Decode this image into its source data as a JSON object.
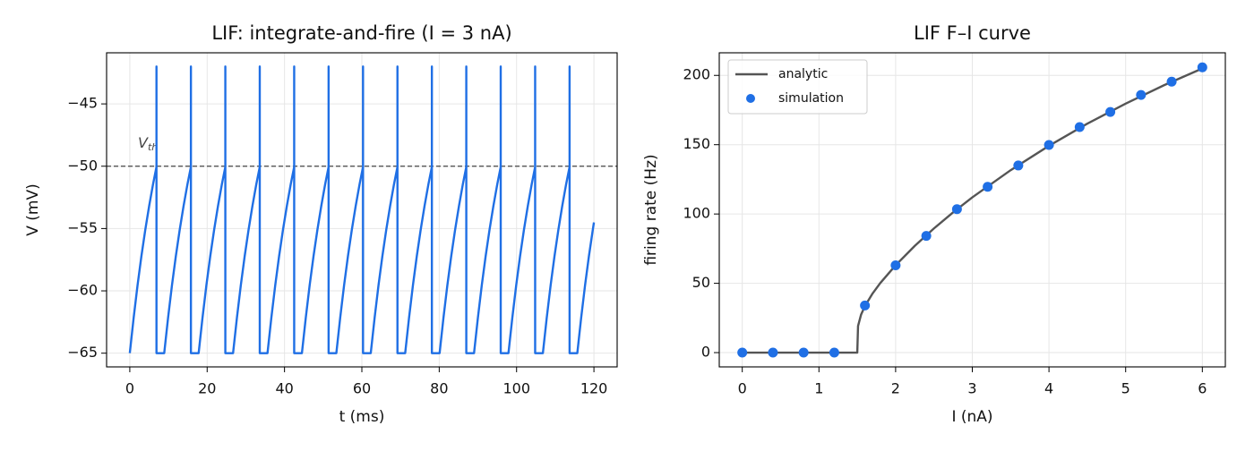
{
  "chart_data": [
    {
      "type": "line",
      "title": "LIF: integrate-and-fire (I = 3 nA)",
      "xlabel": "t (ms)",
      "ylabel": "V (mV)",
      "color": "#1f6fe5",
      "x": [
        0,
        1,
        2,
        3,
        4,
        5,
        6,
        6.9,
        6.9,
        6.9,
        8.9,
        9.9,
        10.9,
        11.9,
        12.9,
        13.9,
        14.9,
        15.8,
        15.8,
        15.8,
        17.8,
        18.8,
        19.8,
        20.8,
        21.8,
        22.8,
        23.8,
        24.7,
        24.7,
        24.7,
        26.7,
        27.7,
        28.7,
        29.7,
        30.7,
        31.7,
        32.7,
        33.6,
        33.6,
        33.6,
        35.6,
        36.6,
        37.6,
        38.6,
        39.6,
        40.6,
        41.6,
        42.5,
        42.5,
        42.5,
        44.5,
        45.5,
        46.5,
        47.5,
        48.5,
        49.5,
        50.5,
        51.4,
        51.4,
        51.4,
        53.4,
        54.4,
        55.4,
        56.4,
        57.4,
        58.4,
        59.4,
        60.3,
        60.3,
        60.3,
        62.3,
        63.3,
        64.3,
        65.3,
        66.3,
        67.3,
        68.3,
        69.2,
        69.2,
        69.2,
        71.2,
        72.2,
        73.2,
        74.2,
        75.2,
        76.2,
        77.2,
        78.1,
        78.1,
        78.1,
        80.1,
        81.1,
        82.1,
        83.1,
        84.1,
        85.1,
        86.1,
        87,
        87,
        87,
        89,
        90,
        91,
        92,
        93,
        94,
        95,
        95.9,
        95.9,
        95.9,
        97.9,
        98.9,
        99.9,
        100.9,
        101.9,
        102.9,
        103.9,
        104.8,
        104.8,
        104.8,
        106.8,
        107.8,
        108.8,
        109.8,
        110.8,
        111.8,
        112.8,
        113.7,
        113.7,
        113.7,
        115.7,
        116.7,
        117.7,
        118.7,
        119.7,
        120
      ],
      "values": [
        -65,
        -62.15,
        -59.56,
        -57.22,
        -55.11,
        -53.2,
        -51.46,
        -50.05,
        -42,
        -65,
        -65,
        -62.15,
        -59.56,
        -57.22,
        -55.11,
        -53.2,
        -51.46,
        -50.05,
        -42,
        -65,
        -65,
        -62.15,
        -59.56,
        -57.22,
        -55.11,
        -53.2,
        -51.46,
        -50.05,
        -42,
        -65,
        -65,
        -62.15,
        -59.56,
        -57.22,
        -55.11,
        -53.2,
        -51.46,
        -50.05,
        -42,
        -65,
        -65,
        -62.15,
        -59.56,
        -57.22,
        -55.11,
        -53.2,
        -51.46,
        -50.05,
        -42,
        -65,
        -65,
        -62.15,
        -59.56,
        -57.22,
        -55.11,
        -53.2,
        -51.46,
        -50.05,
        -42,
        -65,
        -65,
        -62.15,
        -59.56,
        -57.22,
        -55.11,
        -53.2,
        -51.46,
        -50.05,
        -42,
        -65,
        -65,
        -62.15,
        -59.56,
        -57.22,
        -55.11,
        -53.2,
        -51.46,
        -50.05,
        -42,
        -65,
        -65,
        -62.15,
        -59.56,
        -57.22,
        -55.11,
        -53.2,
        -51.46,
        -50.05,
        -42,
        -65,
        -65,
        -62.15,
        -59.56,
        -57.22,
        -55.11,
        -53.2,
        -51.46,
        -50.05,
        -42,
        -65,
        -65,
        -62.15,
        -59.56,
        -57.22,
        -55.11,
        -53.2,
        -51.46,
        -50.05,
        -42,
        -65,
        -65,
        -62.15,
        -59.56,
        -57.22,
        -55.11,
        -53.2,
        -51.46,
        -50.05,
        -42,
        -65,
        -65,
        -62.15,
        -59.56,
        -57.22,
        -55.11,
        -53.2,
        -51.46,
        -50.05,
        -42,
        -65,
        -65,
        -62.15,
        -59.56,
        -57.22,
        -55.11,
        -54.51
      ],
      "hlines": [
        {
          "value": -50,
          "label": "V",
          "label_sub": "th",
          "color": "#444444"
        }
      ],
      "xlim": [
        -6,
        126
      ],
      "xticks": [
        0,
        20,
        40,
        60,
        80,
        100,
        120
      ],
      "ylim": [
        -66.1,
        -40.9
      ],
      "yticks": [
        {
          "value": -65,
          "label": "−65"
        },
        {
          "value": -60,
          "label": "−60"
        },
        {
          "value": -55,
          "label": "−55"
        },
        {
          "value": -50,
          "label": "−50"
        },
        {
          "value": -45,
          "label": "−45"
        }
      ],
      "grid": true
    },
    {
      "type": "line",
      "title": "LIF F–I curve",
      "xlabel": "I (nA)",
      "ylabel": "firing rate (Hz)",
      "series": [
        {
          "name": "analytic",
          "type": "line",
          "color": "#555555",
          "x": [
            0,
            0.5,
            1,
            1.5,
            1.51,
            1.55,
            1.6,
            1.7,
            1.8,
            2,
            2.25,
            2.5,
            2.75,
            3,
            3.5,
            4,
            4.5,
            5,
            5.5,
            6
          ],
          "values": [
            0,
            0,
            0,
            0,
            19.2,
            27.5,
            33.6,
            42.7,
            50.2,
            63,
            77,
            89.6,
            101.2,
            112,
            131.6,
            149.2,
            165.2,
            179.6,
            192.9,
            205
          ]
        },
        {
          "name": "simulation",
          "type": "scatter",
          "color": "#1f6fe5",
          "x": [
            0,
            0.4,
            0.8,
            1.2,
            1.6,
            2,
            2.4,
            2.8,
            3.2,
            3.6,
            4,
            4.4,
            4.8,
            5.2,
            5.6,
            6
          ],
          "values": [
            0,
            0,
            0,
            0,
            34,
            63,
            84.2,
            103.5,
            119.6,
            135,
            149.8,
            162.7,
            173.6,
            185.9,
            195.5,
            205.8
          ]
        }
      ],
      "legend": "upper left",
      "xlim": [
        -0.3,
        6.3
      ],
      "xticks": [
        0,
        1,
        2,
        3,
        4,
        5,
        6
      ],
      "ylim": [
        -10.3,
        216.3
      ],
      "yticks": [
        0,
        50,
        100,
        150,
        200
      ],
      "grid": true
    }
  ]
}
